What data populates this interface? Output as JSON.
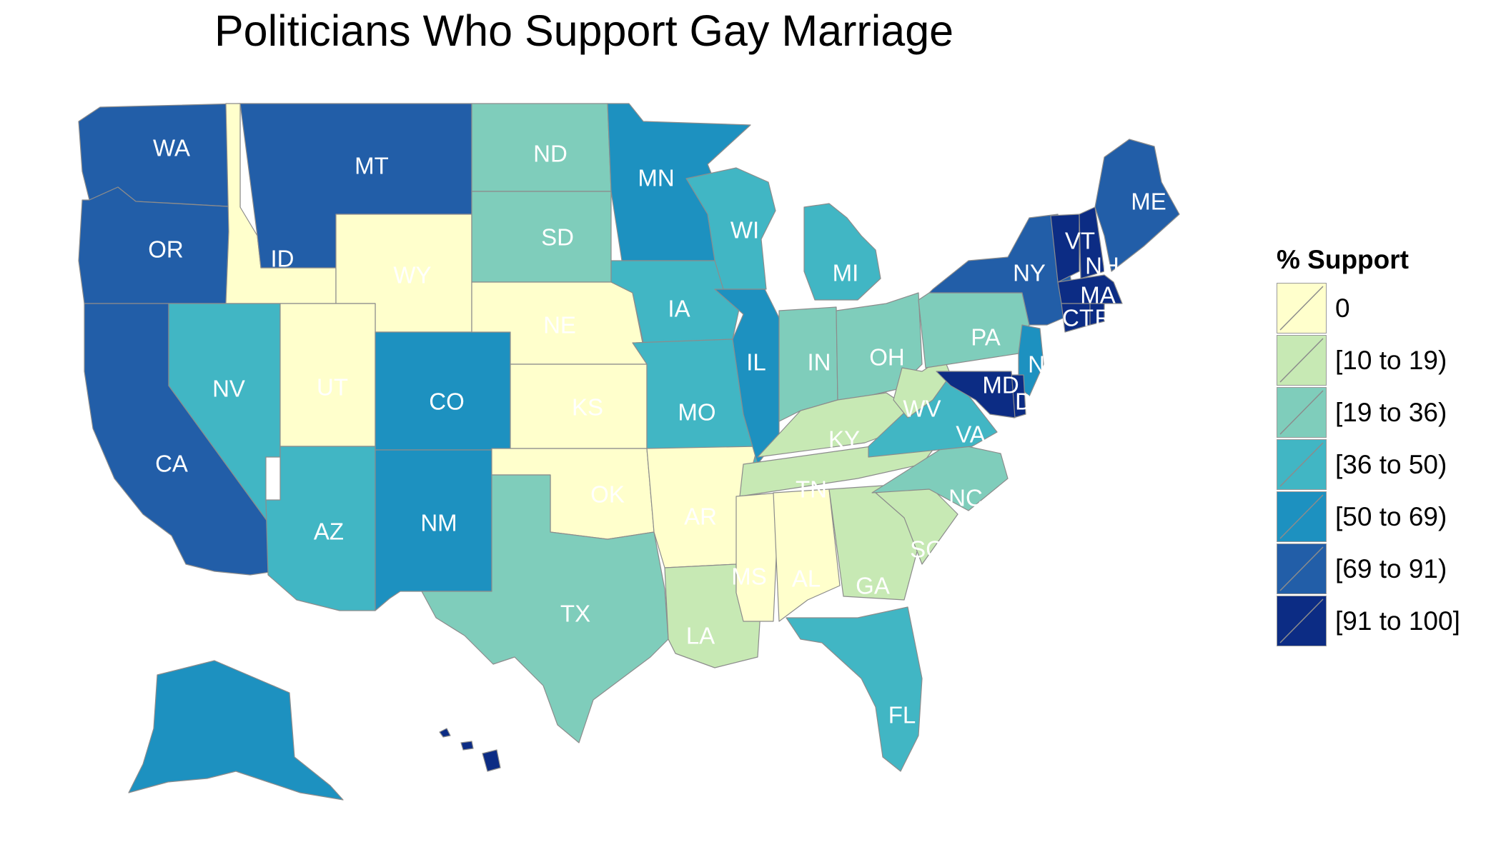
{
  "title": "Politicians Who Support Gay Marriage",
  "legend": {
    "title": "% Support",
    "bins": [
      {
        "label": "0",
        "color": "#ffffcc"
      },
      {
        "label": "[10 to 19)",
        "color": "#c7e9b4"
      },
      {
        "label": "[19 to 36)",
        "color": "#7fcdbb"
      },
      {
        "label": "[36 to 50)",
        "color": "#41b6c4"
      },
      {
        "label": "[50 to 69)",
        "color": "#1d91c0"
      },
      {
        "label": "[69 to 91)",
        "color": "#225ea8"
      },
      {
        "label": "[91 to 100]",
        "color": "#0c2c84"
      }
    ]
  },
  "states": [
    {
      "abbr": "WA",
      "bin": 5
    },
    {
      "abbr": "OR",
      "bin": 5
    },
    {
      "abbr": "CA",
      "bin": 5
    },
    {
      "abbr": "ID",
      "bin": 0
    },
    {
      "abbr": "NV",
      "bin": 3
    },
    {
      "abbr": "MT",
      "bin": 5
    },
    {
      "abbr": "WY",
      "bin": 0
    },
    {
      "abbr": "UT",
      "bin": 0
    },
    {
      "abbr": "AZ",
      "bin": 3
    },
    {
      "abbr": "CO",
      "bin": 4
    },
    {
      "abbr": "NM",
      "bin": 4
    },
    {
      "abbr": "ND",
      "bin": 2
    },
    {
      "abbr": "SD",
      "bin": 2
    },
    {
      "abbr": "NE",
      "bin": 0
    },
    {
      "abbr": "KS",
      "bin": 0
    },
    {
      "abbr": "OK",
      "bin": 0
    },
    {
      "abbr": "TX",
      "bin": 2
    },
    {
      "abbr": "MN",
      "bin": 4
    },
    {
      "abbr": "IA",
      "bin": 3
    },
    {
      "abbr": "MO",
      "bin": 3
    },
    {
      "abbr": "AR",
      "bin": 0
    },
    {
      "abbr": "LA",
      "bin": 1
    },
    {
      "abbr": "WI",
      "bin": 3
    },
    {
      "abbr": "IL",
      "bin": 4
    },
    {
      "abbr": "MI",
      "bin": 3
    },
    {
      "abbr": "IN",
      "bin": 2
    },
    {
      "abbr": "OH",
      "bin": 2
    },
    {
      "abbr": "KY",
      "bin": 1
    },
    {
      "abbr": "TN",
      "bin": 1
    },
    {
      "abbr": "MS",
      "bin": 0
    },
    {
      "abbr": "AL",
      "bin": 0
    },
    {
      "abbr": "GA",
      "bin": 1
    },
    {
      "abbr": "FL",
      "bin": 3
    },
    {
      "abbr": "SC",
      "bin": 1
    },
    {
      "abbr": "NC",
      "bin": 2
    },
    {
      "abbr": "VA",
      "bin": 3
    },
    {
      "abbr": "WV",
      "bin": 1
    },
    {
      "abbr": "PA",
      "bin": 2
    },
    {
      "abbr": "NY",
      "bin": 5
    },
    {
      "abbr": "NJ",
      "label": "N",
      "bin": 4
    },
    {
      "abbr": "DE",
      "label": "D",
      "bin": 6
    },
    {
      "abbr": "MD",
      "bin": 6
    },
    {
      "abbr": "VT",
      "bin": 6
    },
    {
      "abbr": "NH",
      "bin": 6
    },
    {
      "abbr": "ME",
      "bin": 5
    },
    {
      "abbr": "MA",
      "bin": 6
    },
    {
      "abbr": "CT",
      "bin": 6
    },
    {
      "abbr": "RI",
      "label": "RI",
      "bin": 6
    },
    {
      "abbr": "AK",
      "bin": 4
    },
    {
      "abbr": "HI",
      "bin": 6
    }
  ]
}
